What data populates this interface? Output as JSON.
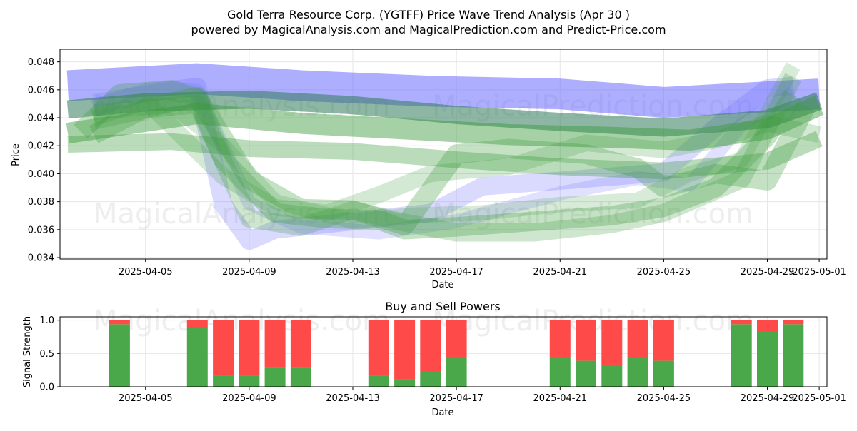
{
  "chart_data": [
    {
      "type": "area",
      "title": "Gold Terra Resource Corp. (YGTFF) Price Wave Trend Analysis (Apr 30 )",
      "subtitle": "powered by MagicalAnalysis.com and MagicalPrediction.com and Predict-Price.com",
      "xlabel": "Date",
      "ylabel": "Price",
      "x_ticks": [
        "2025-04-05",
        "2025-04-09",
        "2025-04-13",
        "2025-04-17",
        "2025-04-21",
        "2025-04-25",
        "2025-04-29",
        "2025-05-01"
      ],
      "x_tick_days": [
        5,
        9,
        13,
        17,
        21,
        25,
        29,
        31
      ],
      "xlim_days": [
        1.7,
        31.3
      ],
      "ylim": [
        0.0339,
        0.0489
      ],
      "y_ticks": [
        0.034,
        0.036,
        0.038,
        0.04,
        0.042,
        0.044,
        0.046,
        0.048
      ],
      "y_tick_labels": [
        "0.034",
        "0.036",
        "0.038",
        "0.040",
        "0.042",
        "0.044",
        "0.046",
        "0.048"
      ],
      "grid": true,
      "watermarks": [
        "MagicalAnalysis.com",
        "MagicalPrediction.com",
        "MagicalAnalysis.com",
        "MagicalPrediction.com"
      ],
      "colors": {
        "blue_band": "#6b6bff",
        "green_band": "#3a9a3a",
        "dark_band": "#2f7a5a"
      },
      "series": [
        {
          "name": "blue-upper-band",
          "color": "blue",
          "width": 0.0022,
          "opacity": 0.55,
          "x": [
            2,
            7,
            11,
            16,
            21,
            25,
            31
          ],
          "y": [
            0.0463,
            0.0468,
            0.0463,
            0.0459,
            0.0457,
            0.0451,
            0.0457
          ]
        },
        {
          "name": "blue-wave-1",
          "color": "blue",
          "width": 0.0013,
          "opacity": 0.25,
          "x": [
            3,
            5,
            7,
            8,
            9,
            10,
            12,
            14,
            16,
            18,
            21,
            23,
            25,
            27,
            29,
            30
          ],
          "y": [
            0.0447,
            0.0458,
            0.0462,
            0.0378,
            0.0352,
            0.036,
            0.0364,
            0.0368,
            0.0372,
            0.0391,
            0.0395,
            0.0398,
            0.0401,
            0.0433,
            0.0461,
            0.0463
          ]
        },
        {
          "name": "blue-wave-2",
          "color": "blue",
          "width": 0.001,
          "opacity": 0.2,
          "x": [
            3,
            6,
            7,
            9,
            11,
            14,
            17,
            21,
            24,
            26,
            28,
            30
          ],
          "y": [
            0.0452,
            0.0461,
            0.0459,
            0.0379,
            0.0362,
            0.0358,
            0.0366,
            0.0386,
            0.0397,
            0.0392,
            0.0435,
            0.0458
          ]
        },
        {
          "name": "dark-trend-band",
          "color": "dark",
          "width": 0.0013,
          "opacity": 0.55,
          "x": [
            2,
            5,
            9,
            13,
            17,
            21,
            25,
            29,
            31
          ],
          "y": [
            0.0446,
            0.0451,
            0.0453,
            0.0449,
            0.0442,
            0.0437,
            0.0433,
            0.0439,
            0.0452
          ]
        },
        {
          "name": "green-trend-band",
          "color": "green",
          "width": 0.0015,
          "opacity": 0.45,
          "x": [
            2,
            7,
            11,
            15,
            19,
            23,
            26,
            29,
            31
          ],
          "y": [
            0.0429,
            0.0443,
            0.0436,
            0.0432,
            0.0428,
            0.0426,
            0.0424,
            0.0432,
            0.0449
          ]
        },
        {
          "name": "green-low-band",
          "color": "green",
          "width": 0.0012,
          "opacity": 0.35,
          "x": [
            2,
            6,
            9,
            13,
            17,
            21,
            25,
            29,
            31
          ],
          "y": [
            0.0421,
            0.0423,
            0.0418,
            0.0416,
            0.041,
            0.0405,
            0.0402,
            0.0409,
            0.0425
          ]
        },
        {
          "name": "green-wave-1",
          "color": "green",
          "width": 0.0014,
          "opacity": 0.3,
          "x": [
            2.5,
            4,
            6,
            7,
            8,
            10,
            12,
            14,
            15,
            17,
            20,
            23,
            25,
            27,
            29,
            30
          ],
          "y": [
            0.043,
            0.0457,
            0.046,
            0.0454,
            0.041,
            0.0372,
            0.0368,
            0.0367,
            0.036,
            0.0362,
            0.0366,
            0.037,
            0.0376,
            0.039,
            0.0427,
            0.0456
          ]
        },
        {
          "name": "green-wave-2",
          "color": "green",
          "width": 0.0014,
          "opacity": 0.3,
          "x": [
            3,
            5,
            7,
            9,
            11,
            13,
            15,
            17,
            19,
            22,
            24,
            25,
            27,
            29,
            30.5
          ],
          "y": [
            0.0428,
            0.0447,
            0.0455,
            0.0396,
            0.0375,
            0.0374,
            0.0363,
            0.0414,
            0.0418,
            0.0414,
            0.0404,
            0.039,
            0.04,
            0.0395,
            0.0448
          ]
        },
        {
          "name": "green-wave-3",
          "color": "green",
          "width": 0.0013,
          "opacity": 0.25,
          "x": [
            3,
            5,
            7,
            9,
            11,
            13,
            15,
            17,
            20,
            23,
            25,
            28,
            30
          ],
          "y": [
            0.0438,
            0.0446,
            0.045,
            0.0368,
            0.0362,
            0.0374,
            0.0365,
            0.0358,
            0.0358,
            0.0364,
            0.0372,
            0.0396,
            0.0469
          ]
        },
        {
          "name": "green-wave-4",
          "color": "green",
          "width": 0.0012,
          "opacity": 0.22,
          "x": [
            3,
            5,
            8,
            10,
            12,
            14,
            16,
            19,
            22,
            25,
            27,
            29,
            31
          ],
          "y": [
            0.044,
            0.0452,
            0.0398,
            0.0376,
            0.0372,
            0.0385,
            0.04,
            0.0405,
            0.0422,
            0.0417,
            0.0424,
            0.0436,
            0.0428
          ]
        },
        {
          "name": "green-wave-5",
          "color": "green",
          "width": 0.0011,
          "opacity": 0.2,
          "x": [
            3,
            6,
            8,
            10,
            13,
            15,
            18,
            21,
            24,
            26,
            28,
            30
          ],
          "y": [
            0.0444,
            0.0449,
            0.042,
            0.038,
            0.0366,
            0.037,
            0.0372,
            0.0378,
            0.0381,
            0.04,
            0.041,
            0.0477
          ]
        }
      ]
    },
    {
      "type": "bar",
      "stacked": true,
      "title": "Buy and Sell Powers",
      "xlabel": "Date",
      "ylabel": "Signal Strength",
      "ylim": [
        0,
        1.05
      ],
      "y_ticks": [
        0,
        0.5,
        1
      ],
      "y_tick_labels": [
        "0.0",
        "0.5",
        "1.0"
      ],
      "x_ticks": [
        "2025-04-05",
        "2025-04-09",
        "2025-04-13",
        "2025-04-17",
        "2025-04-21",
        "2025-04-25",
        "2025-04-29",
        "2025-05-01"
      ],
      "x_tick_days": [
        5,
        9,
        13,
        17,
        21,
        25,
        29,
        31
      ],
      "xlim_days": [
        1.7,
        31.3
      ],
      "grid": true,
      "colors": {
        "buy": "#4aa84a",
        "sell": "#ff4a4a"
      },
      "series_names": [
        "Buy power",
        "Sell power"
      ],
      "days": [
        4,
        7,
        8,
        9,
        10,
        11,
        14,
        15,
        16,
        17,
        21,
        22,
        23,
        24,
        25,
        28,
        29,
        30
      ],
      "buy": [
        0.94,
        0.88,
        0.17,
        0.17,
        0.28,
        0.28,
        0.17,
        0.11,
        0.22,
        0.45,
        0.45,
        0.39,
        0.33,
        0.45,
        0.39,
        0.94,
        0.83,
        0.94
      ],
      "sell": [
        0.06,
        0.12,
        0.83,
        0.83,
        0.72,
        0.72,
        0.83,
        0.89,
        0.78,
        0.55,
        0.55,
        0.61,
        0.67,
        0.55,
        0.61,
        0.06,
        0.17,
        0.06
      ]
    }
  ]
}
